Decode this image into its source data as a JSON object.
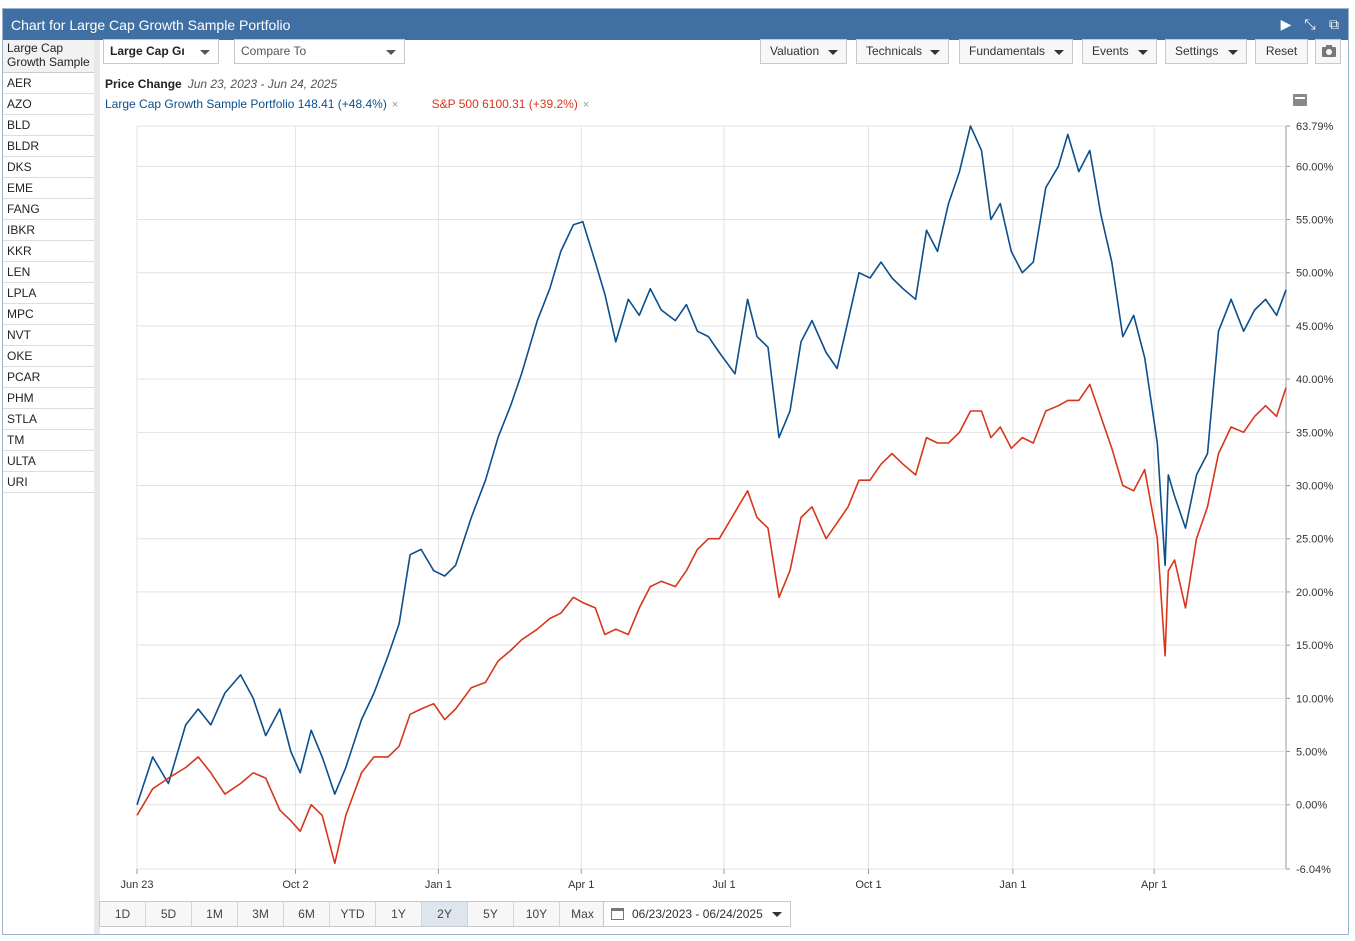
{
  "window": {
    "title": "Chart for Large Cap Growth Sample Portfolio"
  },
  "sidebar": {
    "header": [
      "Large Cap",
      "Growth Sample"
    ],
    "items": [
      "AER",
      "AZO",
      "BLD",
      "BLDR",
      "DKS",
      "EME",
      "FANG",
      "IBKR",
      "KKR",
      "LEN",
      "LPLA",
      "MPC",
      "NVT",
      "OKE",
      "PCAR",
      "PHM",
      "STLA",
      "TM",
      "ULTA",
      "URI"
    ]
  },
  "toolbar": {
    "portfolio_select": "Large Cap Gı",
    "compare_placeholder": "Compare To",
    "valuation": "Valuation",
    "technicals": "Technicals",
    "fundamentals": "Fundamentals",
    "events": "Events",
    "settings": "Settings",
    "reset": "Reset"
  },
  "legend": {
    "label": "Price Change",
    "range": "Jun 23, 2023 - Jun 24, 2025",
    "series1": "Large Cap Growth Sample Portfolio 148.41 (+48.4%)",
    "series2": "S&P 500 6100.31 (+39.2%)",
    "close": "×"
  },
  "range_buttons": [
    "1D",
    "5D",
    "1M",
    "3M",
    "6M",
    "YTD",
    "1Y",
    "2Y",
    "5Y",
    "10Y",
    "Max"
  ],
  "active_range": "2Y",
  "date_range": "06/23/2023 - 06/24/2025",
  "chart_data": {
    "type": "line",
    "ylim": [
      -6.04,
      63.79
    ],
    "y_ticks": [
      "63.79%",
      "60.00%",
      "55.00%",
      "50.00%",
      "45.00%",
      "40.00%",
      "35.00%",
      "30.00%",
      "25.00%",
      "20.00%",
      "15.00%",
      "10.00%",
      "5.00%",
      "0.00%",
      "-6.04%"
    ],
    "y_tick_values": [
      63.79,
      60,
      55,
      50,
      45,
      40,
      35,
      30,
      25,
      20,
      15,
      10,
      5,
      0,
      -6.04
    ],
    "x_ticks": [
      {
        "label": "Jun 23",
        "x": "2023-06-23"
      },
      {
        "label": "Oct 2",
        "x": "2023-10-02"
      },
      {
        "label": "Jan 1",
        "x": "2024-01-01"
      },
      {
        "label": "Apr 1",
        "x": "2024-04-01"
      },
      {
        "label": "Jul 1",
        "x": "2024-07-01"
      },
      {
        "label": "Oct 1",
        "x": "2024-10-01"
      },
      {
        "label": "Jan 1",
        "x": "2025-01-01"
      },
      {
        "label": "Apr 1",
        "x": "2025-04-01"
      }
    ],
    "x_range": [
      "2023-06-23",
      "2025-06-24"
    ],
    "grid": true,
    "series": [
      {
        "name": "Large Cap Growth Sample Portfolio",
        "color": "#0b4f8c",
        "points": [
          [
            "2023-06-23",
            0.0
          ],
          [
            "2023-07-03",
            4.5
          ],
          [
            "2023-07-13",
            2.0
          ],
          [
            "2023-07-24",
            7.5
          ],
          [
            "2023-08-01",
            9.0
          ],
          [
            "2023-08-09",
            7.5
          ],
          [
            "2023-08-18",
            10.5
          ],
          [
            "2023-08-28",
            12.2
          ],
          [
            "2023-09-05",
            10.0
          ],
          [
            "2023-09-13",
            6.5
          ],
          [
            "2023-09-22",
            9.0
          ],
          [
            "2023-09-29",
            5.0
          ],
          [
            "2023-10-05",
            3.0
          ],
          [
            "2023-10-12",
            7.0
          ],
          [
            "2023-10-19",
            4.5
          ],
          [
            "2023-10-27",
            1.0
          ],
          [
            "2023-11-03",
            3.5
          ],
          [
            "2023-11-13",
            8.0
          ],
          [
            "2023-11-21",
            10.5
          ],
          [
            "2023-11-30",
            14.0
          ],
          [
            "2023-12-07",
            17.0
          ],
          [
            "2023-12-14",
            23.5
          ],
          [
            "2023-12-21",
            24.0
          ],
          [
            "2023-12-29",
            22.0
          ],
          [
            "2024-01-05",
            21.5
          ],
          [
            "2024-01-12",
            22.5
          ],
          [
            "2024-01-22",
            27.0
          ],
          [
            "2024-01-31",
            30.5
          ],
          [
            "2024-02-08",
            34.5
          ],
          [
            "2024-02-16",
            37.5
          ],
          [
            "2024-02-23",
            40.5
          ],
          [
            "2024-03-04",
            45.5
          ],
          [
            "2024-03-12",
            48.5
          ],
          [
            "2024-03-19",
            52.0
          ],
          [
            "2024-03-27",
            54.5
          ],
          [
            "2024-04-02",
            54.8
          ],
          [
            "2024-04-10",
            51.0
          ],
          [
            "2024-04-16",
            48.0
          ],
          [
            "2024-04-23",
            43.5
          ],
          [
            "2024-05-01",
            47.5
          ],
          [
            "2024-05-08",
            46.0
          ],
          [
            "2024-05-15",
            48.5
          ],
          [
            "2024-05-22",
            46.5
          ],
          [
            "2024-05-31",
            45.5
          ],
          [
            "2024-06-07",
            47.0
          ],
          [
            "2024-06-14",
            44.5
          ],
          [
            "2024-06-21",
            44.0
          ],
          [
            "2024-06-28",
            42.5
          ],
          [
            "2024-07-08",
            40.5
          ],
          [
            "2024-07-16",
            47.5
          ],
          [
            "2024-07-22",
            44.0
          ],
          [
            "2024-07-29",
            43.0
          ],
          [
            "2024-08-05",
            34.5
          ],
          [
            "2024-08-12",
            37.0
          ],
          [
            "2024-08-19",
            43.5
          ],
          [
            "2024-08-26",
            45.5
          ],
          [
            "2024-09-04",
            42.5
          ],
          [
            "2024-09-11",
            41.0
          ],
          [
            "2024-09-18",
            45.5
          ],
          [
            "2024-09-25",
            50.0
          ],
          [
            "2024-10-02",
            49.5
          ],
          [
            "2024-10-09",
            51.0
          ],
          [
            "2024-10-16",
            49.5
          ],
          [
            "2024-10-23",
            48.5
          ],
          [
            "2024-10-31",
            47.5
          ],
          [
            "2024-11-07",
            54.0
          ],
          [
            "2024-11-14",
            52.0
          ],
          [
            "2024-11-21",
            56.5
          ],
          [
            "2024-11-28",
            59.5
          ],
          [
            "2024-12-05",
            63.79
          ],
          [
            "2024-12-12",
            61.5
          ],
          [
            "2024-12-18",
            55.0
          ],
          [
            "2024-12-24",
            56.5
          ],
          [
            "2024-12-31",
            52.0
          ],
          [
            "2025-01-07",
            50.0
          ],
          [
            "2025-01-14",
            51.0
          ],
          [
            "2025-01-22",
            58.0
          ],
          [
            "2025-01-30",
            60.0
          ],
          [
            "2025-02-05",
            63.0
          ],
          [
            "2025-02-12",
            59.5
          ],
          [
            "2025-02-19",
            61.5
          ],
          [
            "2025-02-26",
            55.5
          ],
          [
            "2025-03-05",
            51.0
          ],
          [
            "2025-03-12",
            44.0
          ],
          [
            "2025-03-19",
            46.0
          ],
          [
            "2025-03-26",
            42.0
          ],
          [
            "2025-04-03",
            34.0
          ],
          [
            "2025-04-08",
            22.5
          ],
          [
            "2025-04-10",
            31.0
          ],
          [
            "2025-04-14",
            29.0
          ],
          [
            "2025-04-21",
            26.0
          ],
          [
            "2025-04-28",
            31.0
          ],
          [
            "2025-05-05",
            33.0
          ],
          [
            "2025-05-12",
            44.5
          ],
          [
            "2025-05-20",
            47.5
          ],
          [
            "2025-05-28",
            44.5
          ],
          [
            "2025-06-04",
            46.5
          ],
          [
            "2025-06-11",
            47.5
          ],
          [
            "2025-06-18",
            46.0
          ],
          [
            "2025-06-24",
            48.4
          ]
        ]
      },
      {
        "name": "S&P 500",
        "color": "#d8361c",
        "points": [
          [
            "2023-06-23",
            -1.0
          ],
          [
            "2023-07-03",
            1.5
          ],
          [
            "2023-07-13",
            2.5
          ],
          [
            "2023-07-24",
            3.5
          ],
          [
            "2023-08-01",
            4.5
          ],
          [
            "2023-08-09",
            3.0
          ],
          [
            "2023-08-18",
            1.0
          ],
          [
            "2023-08-28",
            2.0
          ],
          [
            "2023-09-05",
            3.0
          ],
          [
            "2023-09-13",
            2.5
          ],
          [
            "2023-09-22",
            -0.5
          ],
          [
            "2023-09-29",
            -1.5
          ],
          [
            "2023-10-05",
            -2.5
          ],
          [
            "2023-10-12",
            0.0
          ],
          [
            "2023-10-19",
            -1.0
          ],
          [
            "2023-10-27",
            -5.5
          ],
          [
            "2023-11-03",
            -1.0
          ],
          [
            "2023-11-13",
            3.0
          ],
          [
            "2023-11-21",
            4.5
          ],
          [
            "2023-11-30",
            4.5
          ],
          [
            "2023-12-07",
            5.5
          ],
          [
            "2023-12-14",
            8.5
          ],
          [
            "2023-12-21",
            9.0
          ],
          [
            "2023-12-29",
            9.5
          ],
          [
            "2024-01-05",
            8.0
          ],
          [
            "2024-01-12",
            9.0
          ],
          [
            "2024-01-22",
            11.0
          ],
          [
            "2024-01-31",
            11.5
          ],
          [
            "2024-02-08",
            13.5
          ],
          [
            "2024-02-16",
            14.5
          ],
          [
            "2024-02-23",
            15.5
          ],
          [
            "2024-03-04",
            16.5
          ],
          [
            "2024-03-12",
            17.5
          ],
          [
            "2024-03-19",
            18.0
          ],
          [
            "2024-03-27",
            19.5
          ],
          [
            "2024-04-02",
            19.0
          ],
          [
            "2024-04-10",
            18.5
          ],
          [
            "2024-04-16",
            16.0
          ],
          [
            "2024-04-23",
            16.5
          ],
          [
            "2024-05-01",
            16.0
          ],
          [
            "2024-05-08",
            18.5
          ],
          [
            "2024-05-15",
            20.5
          ],
          [
            "2024-05-22",
            21.0
          ],
          [
            "2024-05-31",
            20.5
          ],
          [
            "2024-06-07",
            22.0
          ],
          [
            "2024-06-14",
            24.0
          ],
          [
            "2024-06-21",
            25.0
          ],
          [
            "2024-06-28",
            25.0
          ],
          [
            "2024-07-08",
            27.5
          ],
          [
            "2024-07-16",
            29.5
          ],
          [
            "2024-07-22",
            27.0
          ],
          [
            "2024-07-29",
            26.0
          ],
          [
            "2024-08-05",
            19.5
          ],
          [
            "2024-08-12",
            22.0
          ],
          [
            "2024-08-19",
            27.0
          ],
          [
            "2024-08-26",
            28.0
          ],
          [
            "2024-09-04",
            25.0
          ],
          [
            "2024-09-11",
            26.5
          ],
          [
            "2024-09-18",
            28.0
          ],
          [
            "2024-09-25",
            30.5
          ],
          [
            "2024-10-02",
            30.5
          ],
          [
            "2024-10-09",
            32.0
          ],
          [
            "2024-10-16",
            33.0
          ],
          [
            "2024-10-23",
            32.0
          ],
          [
            "2024-10-31",
            31.0
          ],
          [
            "2024-11-07",
            34.5
          ],
          [
            "2024-11-14",
            34.0
          ],
          [
            "2024-11-21",
            34.0
          ],
          [
            "2024-11-28",
            35.0
          ],
          [
            "2024-12-05",
            37.0
          ],
          [
            "2024-12-12",
            37.0
          ],
          [
            "2024-12-18",
            34.5
          ],
          [
            "2024-12-24",
            35.5
          ],
          [
            "2024-12-31",
            33.5
          ],
          [
            "2025-01-07",
            34.5
          ],
          [
            "2025-01-14",
            34.0
          ],
          [
            "2025-01-22",
            37.0
          ],
          [
            "2025-01-30",
            37.5
          ],
          [
            "2025-02-05",
            38.0
          ],
          [
            "2025-02-12",
            38.0
          ],
          [
            "2025-02-19",
            39.5
          ],
          [
            "2025-02-26",
            36.5
          ],
          [
            "2025-03-05",
            33.5
          ],
          [
            "2025-03-12",
            30.0
          ],
          [
            "2025-03-19",
            29.5
          ],
          [
            "2025-03-26",
            31.5
          ],
          [
            "2025-04-03",
            25.0
          ],
          [
            "2025-04-08",
            14.0
          ],
          [
            "2025-04-10",
            22.0
          ],
          [
            "2025-04-14",
            23.0
          ],
          [
            "2025-04-21",
            18.5
          ],
          [
            "2025-04-28",
            25.0
          ],
          [
            "2025-05-05",
            28.0
          ],
          [
            "2025-05-12",
            33.0
          ],
          [
            "2025-05-20",
            35.5
          ],
          [
            "2025-05-28",
            35.0
          ],
          [
            "2025-06-04",
            36.5
          ],
          [
            "2025-06-11",
            37.5
          ],
          [
            "2025-06-18",
            36.5
          ],
          [
            "2025-06-24",
            39.2
          ]
        ]
      }
    ]
  }
}
